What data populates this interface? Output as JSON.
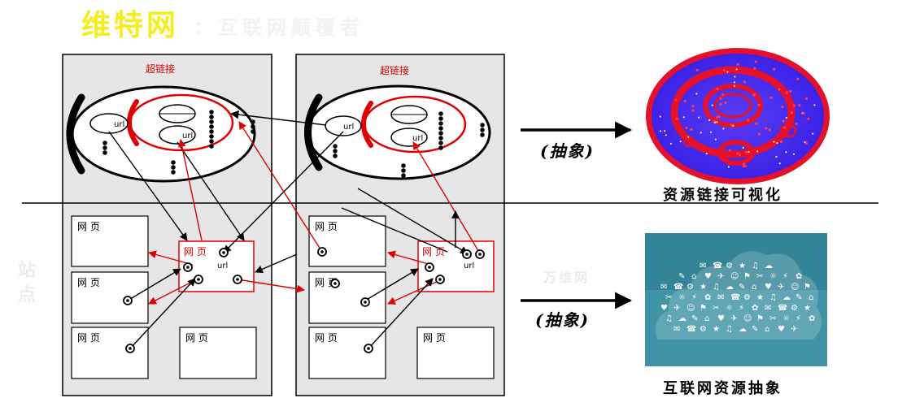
{
  "title": {
    "main": "维特网",
    "sub": "：互联网颠覆者"
  },
  "site_label": "站点",
  "watermark": "万维网",
  "site_boxes": [
    {
      "hyperlink_label": "超链接",
      "url_labels": [
        "url",
        "url"
      ]
    },
    {
      "hyperlink_label": "超链接",
      "url_labels": [
        "url",
        "url"
      ]
    }
  ],
  "page_label": "网 页",
  "url_label": "url",
  "abstraction_label": "(抽象)",
  "captions": {
    "visualization": "资源链接可视化",
    "abstraction": "互联网资源抽象"
  },
  "colors": {
    "accent_red": "#e00000",
    "title_yellow": "#f5ee1f",
    "box_gray": "#e6e6e6",
    "viz_blue": "#4a2cf0"
  }
}
